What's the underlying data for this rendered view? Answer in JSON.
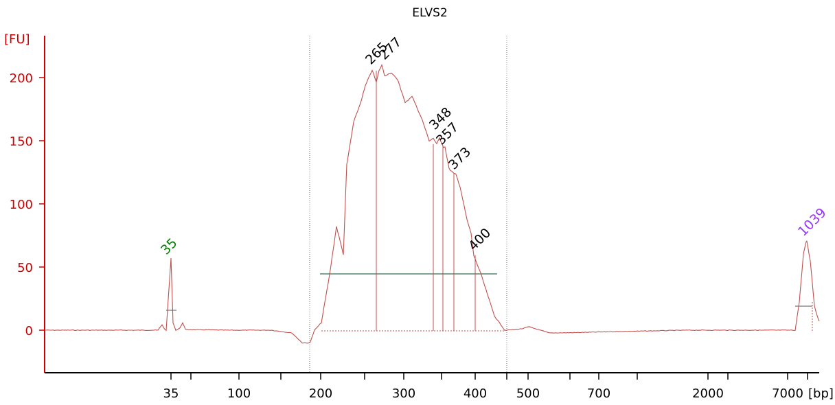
{
  "chart_data": {
    "type": "line",
    "title": "ELVS2",
    "ylabel": "[FU]",
    "xlabel": "[bp]",
    "ylim": [
      -33,
      232
    ],
    "y_ticks": [
      0,
      50,
      100,
      150,
      200
    ],
    "x_ticks": [
      "35",
      "100",
      "200",
      "300",
      "400",
      "500",
      "700",
      "2000",
      "7000"
    ],
    "grid": false,
    "colors": {
      "axis": "#cc0000",
      "trace": "#c0504d",
      "ladder_low": "#008000",
      "ladder_high": "#9933ff",
      "peak_label": "#000000",
      "region": "#2e6e4e",
      "divider": "#777777"
    },
    "peak_labels": [
      {
        "text": "35",
        "kind": "ladder_low"
      },
      {
        "text": "265",
        "kind": "peak"
      },
      {
        "text": "277",
        "kind": "peak"
      },
      {
        "text": "348",
        "kind": "peak"
      },
      {
        "text": "357",
        "kind": "peak"
      },
      {
        "text": "373",
        "kind": "peak"
      },
      {
        "text": "400",
        "kind": "peak"
      },
      {
        "text": "1039",
        "kind": "ladder_high"
      }
    ],
    "series": [
      {
        "x": [
          "35",
          "35",
          "35",
          "100",
          "200",
          "200",
          "200",
          "265",
          "277",
          "300",
          "348",
          "357",
          "373",
          "400",
          "400",
          "500",
          "700",
          "2000",
          "7000",
          "1039",
          "1039"
        ],
        "values": [
          0,
          57,
          0,
          0,
          -10,
          0,
          60,
          206,
          210,
          180,
          152,
          145,
          124,
          59,
          28,
          0,
          -2,
          0,
          0,
          70,
          7
        ]
      }
    ]
  }
}
